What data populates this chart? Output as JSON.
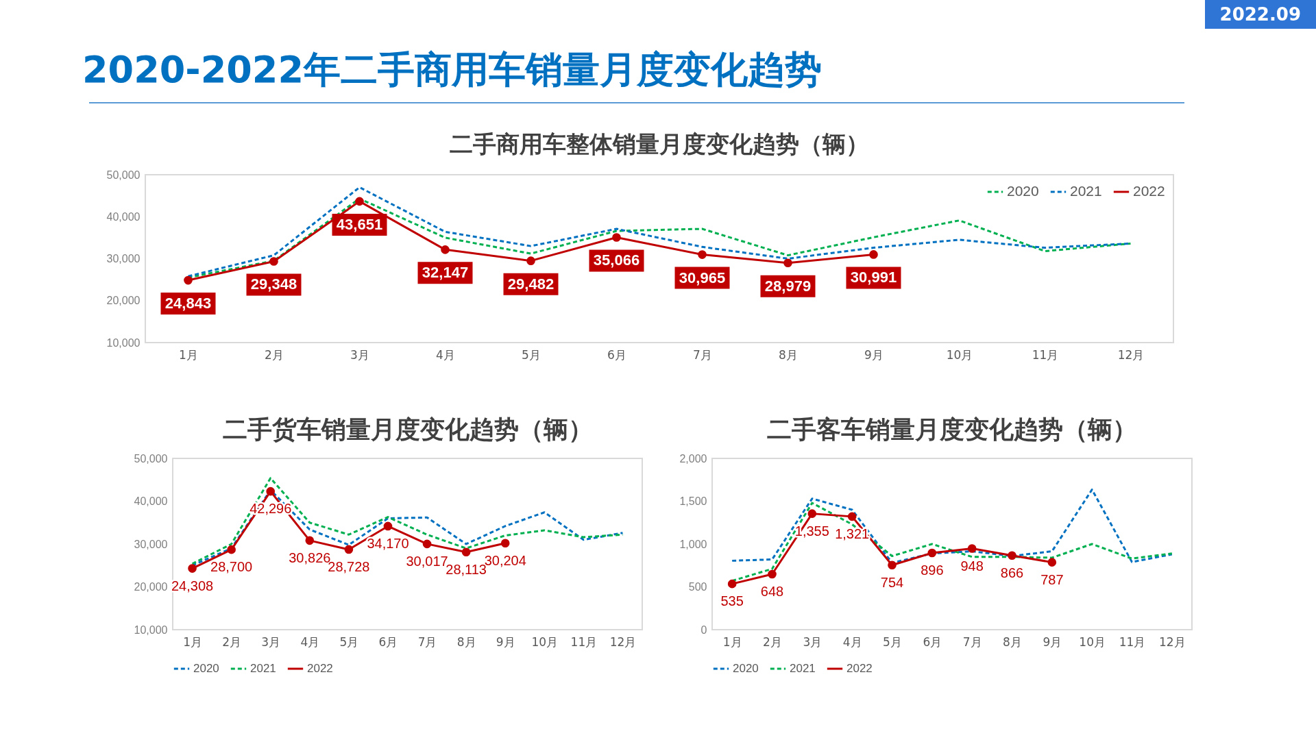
{
  "chart_data": [
    {
      "type": "other",
      "title": "2020-2022年二手商用车销量月度变化趋势",
      "annotations": [
        "2022.09"
      ]
    },
    {
      "type": "line",
      "title": "二手商用车整体销量月度变化趋势（辆）",
      "categories": [
        "1月",
        "2月",
        "3月",
        "4月",
        "5月",
        "6月",
        "7月",
        "8月",
        "9月",
        "10月",
        "11月",
        "12月"
      ],
      "ylim": [
        10000,
        50000
      ],
      "yticks": [
        {
          "value": 10000,
          "label": "10,000"
        },
        {
          "value": 20000,
          "label": "20,000"
        },
        {
          "value": 30000,
          "label": "30,000"
        },
        {
          "value": 40000,
          "label": "40,000"
        },
        {
          "value": 50000,
          "label": "50,000"
        }
      ],
      "grid": false,
      "legend": "top right",
      "series": [
        {
          "name": "2020",
          "color": "#00b050",
          "line_style": "dashed",
          "marker": "none",
          "values": [
            25500,
            29500,
            44300,
            35000,
            31200,
            36600,
            37100,
            30800,
            35100,
            39100,
            31800,
            33600
          ]
        },
        {
          "name": "2021",
          "color": "#0070c0",
          "line_style": "dashed",
          "marker": "none",
          "values": [
            25800,
            30800,
            47000,
            36400,
            33000,
            37100,
            32800,
            30000,
            32600,
            34500,
            32600,
            33600
          ]
        },
        {
          "name": "2022",
          "color": "#c00000",
          "line_style": "solid",
          "marker": "circle",
          "values": [
            24843,
            29348,
            43651,
            32147,
            29482,
            35066,
            30965,
            28979,
            30991,
            null,
            null,
            null
          ],
          "value_labels": [
            "24,843",
            "29,348",
            "43,651",
            "32,147",
            "29,482",
            "35,066",
            "30,965",
            "28,979",
            "30,991",
            null,
            null,
            null
          ]
        }
      ]
    },
    {
      "type": "line",
      "title": "二手货车销量月度变化趋势（辆）",
      "categories": [
        "1月",
        "2月",
        "3月",
        "4月",
        "5月",
        "6月",
        "7月",
        "8月",
        "9月",
        "10月",
        "11月",
        "12月"
      ],
      "ylim": [
        10000,
        50000
      ],
      "yticks": [
        {
          "value": 10000,
          "label": "10,000"
        },
        {
          "value": 20000,
          "label": "20,000"
        },
        {
          "value": 30000,
          "label": "30,000"
        },
        {
          "value": 40000,
          "label": "40,000"
        },
        {
          "value": 50000,
          "label": "50,000"
        }
      ],
      "grid": false,
      "legend": "bottom",
      "series": [
        {
          "name": "2020",
          "color": "#0070c0",
          "line_style": "dashed",
          "marker": "none",
          "values": [
            25000,
            29000,
            42600,
            33400,
            29800,
            36000,
            36200,
            30000,
            34200,
            37400,
            31000,
            32600
          ]
        },
        {
          "name": "2021",
          "color": "#00b050",
          "line_style": "dashed",
          "marker": "none",
          "values": [
            25400,
            30000,
            45400,
            35000,
            32200,
            36300,
            32200,
            29000,
            32000,
            33200,
            31600,
            32200
          ]
        },
        {
          "name": "2022",
          "color": "#c00000",
          "line_style": "solid",
          "marker": "circle",
          "values": [
            24308,
            28700,
            42296,
            30826,
            28728,
            34170,
            30017,
            28113,
            30204,
            null,
            null,
            null
          ],
          "value_labels": [
            "24,308",
            "28,700",
            "42,296",
            "30,826",
            "28,728",
            "34,170",
            "30,017",
            "28,113",
            "30,204",
            null,
            null,
            null
          ]
        }
      ]
    },
    {
      "type": "line",
      "title": "二手客车销量月度变化趋势（辆）",
      "categories": [
        "1月",
        "2月",
        "3月",
        "4月",
        "5月",
        "6月",
        "7月",
        "8月",
        "9月",
        "10月",
        "11月",
        "12月"
      ],
      "ylim": [
        0,
        2000
      ],
      "yticks": [
        0,
        500,
        {
          "value": 1000,
          "label": "1,000"
        },
        {
          "value": 1500,
          "label": "1,500"
        },
        {
          "value": 2000,
          "label": "2,000"
        }
      ],
      "grid": false,
      "legend": "bottom",
      "series": [
        {
          "name": "2020",
          "color": "#0070c0",
          "line_style": "dashed",
          "marker": "none",
          "values": [
            805,
            820,
            1530,
            1400,
            780,
            890,
            915,
            860,
            915,
            1635,
            790,
            880
          ]
        },
        {
          "name": "2021",
          "color": "#00b050",
          "line_style": "dashed",
          "marker": "none",
          "values": [
            570,
            710,
            1480,
            1230,
            860,
            1000,
            850,
            850,
            840,
            1000,
            830,
            890
          ]
        },
        {
          "name": "2022",
          "color": "#c00000",
          "line_style": "solid",
          "marker": "circle",
          "values": [
            535,
            648,
            1355,
            1321,
            754,
            896,
            948,
            866,
            787,
            null,
            null,
            null
          ],
          "value_labels": [
            "535",
            "648",
            "1,355",
            "1,321",
            "754",
            "896",
            "948",
            "866",
            "787",
            null,
            null,
            null
          ]
        }
      ]
    }
  ]
}
